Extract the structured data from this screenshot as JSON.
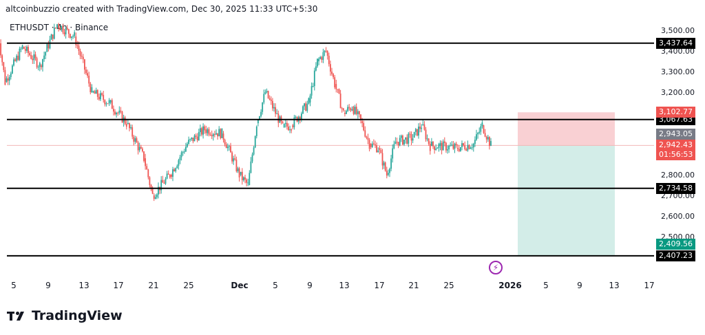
{
  "header": {
    "attribution": "altcoinbuzzio created with TradingView.com, Dec 30, 2025 11:33 UTC+5:30",
    "symbol": "ETHUSDT · 4h · Binance"
  },
  "brand": {
    "name": "TradingView"
  },
  "icons": {
    "event": "lightning-icon",
    "logo": "tradingview-logo-icon"
  },
  "colors": {
    "up": "#26a69a",
    "down": "#ef5350",
    "level_line": "#000000",
    "stop_zone": "#f9d0d3",
    "target_zone": "#d3ede8",
    "last_price_bg": "#ef5350",
    "event_icon": "#9c27b0"
  },
  "chart_data": {
    "type": "candlestick",
    "title": "ETHUSDT · 4h · Binance",
    "ylim": [
      2400,
      3560
    ],
    "y_ticks": [
      "3,500.00",
      "3,400.00",
      "3,300.00",
      "3,200.00",
      "2,800.00",
      "2,700.00",
      "2,600.00",
      "2,500.00"
    ],
    "y_tick_values": [
      3500,
      3400,
      3300,
      3200,
      2800,
      2700,
      2600,
      2500
    ],
    "x_ticks": [
      "5",
      "9",
      "13",
      "17",
      "21",
      "25",
      "Dec",
      "5",
      "9",
      "13",
      "17",
      "21",
      "25",
      "2026",
      "5",
      "9",
      "13",
      "17"
    ],
    "horizontal_levels": [
      {
        "label": "3,437.64",
        "value": 3437.64
      },
      {
        "label": "3,067.63",
        "value": 3067.63
      },
      {
        "label": "2,734.58",
        "value": 2734.58
      },
      {
        "label": "2,407.23",
        "value": 2407.23
      }
    ],
    "position": {
      "type": "long",
      "entry_label": "2,943.05",
      "entry": 2943.05,
      "stop_label": "3,102.77",
      "stop": 3102.77,
      "target_label": "2,409.56",
      "target": 2409.56
    },
    "last_price": {
      "label": "2,942.43",
      "value": 2942.43,
      "countdown": "01:56:53"
    },
    "price_path": [
      {
        "x": "Nov 3",
        "y": 3550
      },
      {
        "x": "Nov 4",
        "y": 3250
      },
      {
        "x": "Nov 6",
        "y": 3420
      },
      {
        "x": "Nov 8",
        "y": 3330
      },
      {
        "x": "Nov 10",
        "y": 3530
      },
      {
        "x": "Nov 12",
        "y": 3470
      },
      {
        "x": "Nov 14",
        "y": 3200
      },
      {
        "x": "Nov 16",
        "y": 3150
      },
      {
        "x": "Nov 18",
        "y": 3050
      },
      {
        "x": "Nov 20",
        "y": 2880
      },
      {
        "x": "Nov 21",
        "y": 2700
      },
      {
        "x": "Nov 23",
        "y": 2800
      },
      {
        "x": "Nov 25",
        "y": 2950
      },
      {
        "x": "Nov 27",
        "y": 3020
      },
      {
        "x": "Nov 29",
        "y": 3000
      },
      {
        "x": "Dec 1",
        "y": 2800
      },
      {
        "x": "Dec 2",
        "y": 2750
      },
      {
        "x": "Dec 3",
        "y": 3050
      },
      {
        "x": "Dec 4",
        "y": 3200
      },
      {
        "x": "Dec 6",
        "y": 3030
      },
      {
        "x": "Dec 7",
        "y": 3040
      },
      {
        "x": "Dec 9",
        "y": 3150
      },
      {
        "x": "Dec 10",
        "y": 3350
      },
      {
        "x": "Dec 11",
        "y": 3400
      },
      {
        "x": "Dec 12",
        "y": 3240
      },
      {
        "x": "Dec 13",
        "y": 3100
      },
      {
        "x": "Dec 14",
        "y": 3130
      },
      {
        "x": "Dec 15",
        "y": 3060
      },
      {
        "x": "Dec 16",
        "y": 2950
      },
      {
        "x": "Dec 17",
        "y": 2930
      },
      {
        "x": "Dec 18",
        "y": 2800
      },
      {
        "x": "Dec 19",
        "y": 2960
      },
      {
        "x": "Dec 21",
        "y": 2980
      },
      {
        "x": "Dec 22",
        "y": 3040
      },
      {
        "x": "Dec 23",
        "y": 2940
      },
      {
        "x": "Dec 24",
        "y": 2940
      },
      {
        "x": "Dec 26",
        "y": 2930
      },
      {
        "x": "Dec 28",
        "y": 2950
      },
      {
        "x": "Dec 29",
        "y": 3040
      },
      {
        "x": "Dec 30",
        "y": 2942
      }
    ]
  }
}
